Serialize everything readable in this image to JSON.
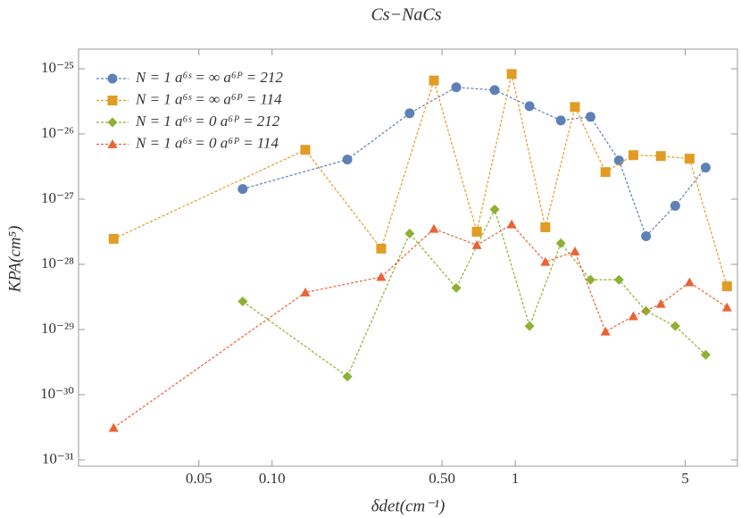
{
  "chart_data": {
    "type": "line",
    "title": "Cs−NaCs",
    "xlabel": "δdet(cm⁻¹)",
    "ylabel": "KPA(cm⁵)",
    "xscale": "log",
    "yscale": "log",
    "legend": "top-left",
    "xlim": [
      0.016,
      8.2
    ],
    "ylim": [
      8e-32,
      2e-25
    ],
    "xticks": [
      {
        "value": 0.05,
        "label": "0.05"
      },
      {
        "value": 0.1,
        "label": "0.10"
      },
      {
        "value": 0.5,
        "label": "0.50"
      },
      1,
      5
    ],
    "yticks": [
      {
        "value": 1e-25,
        "label": "10⁻²⁵"
      },
      {
        "value": 1e-26,
        "label": "10⁻²⁶"
      },
      {
        "value": 1e-27,
        "label": "10⁻²⁷"
      },
      {
        "value": 1e-28,
        "label": "10⁻²⁸"
      },
      {
        "value": 1e-29,
        "label": "10⁻²⁹"
      },
      {
        "value": 1e-30,
        "label": "10⁻³⁰"
      },
      {
        "value": 1e-31,
        "label": "10⁻³¹"
      }
    ],
    "series": [
      {
        "name": "N = 1 a⁶ˢ = ∞ a⁶ᴾ = 212",
        "color": "#5e81b5",
        "marker": "circle",
        "x": [
          0.0757,
          0.204,
          0.368,
          0.572,
          0.823,
          1.145,
          1.54,
          2.04,
          2.67,
          3.45,
          4.55,
          6.07
        ],
        "values": [
          1.43e-27,
          4.05e-27,
          2.07e-26,
          5.2e-26,
          4.7e-26,
          2.67e-26,
          1.61e-26,
          1.83e-26,
          3.92e-27,
          2.7e-28,
          7.9e-28,
          3.05e-27
        ]
      },
      {
        "name": "N = 1 a⁶ˢ = ∞ a⁶ᴾ = 114",
        "color": "#e19c24",
        "marker": "square",
        "x": [
          0.0223,
          0.137,
          0.281,
          0.463,
          0.695,
          0.967,
          1.33,
          1.76,
          2.35,
          3.06,
          3.97,
          5.21,
          7.43
        ],
        "values": [
          2.46e-28,
          5.7e-27,
          1.74e-28,
          6.6e-26,
          3.16e-28,
          8.3e-26,
          3.7e-28,
          2.59e-26,
          2.6e-27,
          4.73e-27,
          4.58e-27,
          4.17e-27,
          4.6e-29
        ]
      },
      {
        "name": "N = 1 a⁶ˢ = 0 a⁶ᴾ = 212",
        "color": "#8fb032",
        "marker": "diamond",
        "x": [
          0.0757,
          0.204,
          0.368,
          0.572,
          0.823,
          1.145,
          1.54,
          2.04,
          2.67,
          3.45,
          4.55,
          6.07
        ],
        "values": [
          2.7e-29,
          1.9e-30,
          2.97e-28,
          4.35e-29,
          6.95e-28,
          1.13e-29,
          2.1e-28,
          5.8e-29,
          5.8e-29,
          1.92e-29,
          1.13e-29,
          4.1e-30
        ]
      },
      {
        "name": "N = 1 a⁶ˢ = 0 a⁶ᴾ = 114",
        "color": "#eb6235",
        "marker": "triangle",
        "x": [
          0.0223,
          0.137,
          0.281,
          0.463,
          0.695,
          0.967,
          1.33,
          1.76,
          2.35,
          3.06,
          3.97,
          5.21,
          7.43
        ],
        "values": [
          3.1e-31,
          3.7e-29,
          6.4e-29,
          3.5e-28,
          1.97e-28,
          4.1e-28,
          1.09e-28,
          1.58e-28,
          9.3e-30,
          1.6e-29,
          2.47e-29,
          5.3e-29,
          2.18e-29
        ]
      }
    ]
  }
}
